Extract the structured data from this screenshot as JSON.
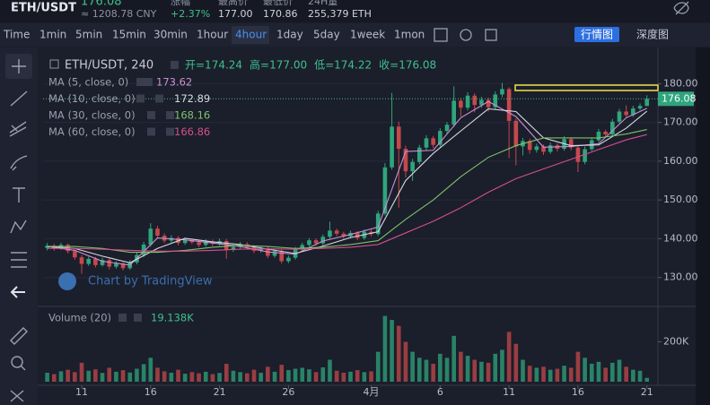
{
  "header": {
    "pair": "ETH/USDT",
    "price": "176.08",
    "cny": "≈ 1208.78 CNY",
    "stats": [
      {
        "label": "涨幅",
        "value": "+2.37%"
      },
      {
        "label": "最高价",
        "value": "177.00"
      },
      {
        "label": "最低价",
        "value": "170.86"
      },
      {
        "label": "24H量",
        "value": "255,379 ETH"
      }
    ]
  },
  "toolbar": {
    "intervals": [
      "Time",
      "1min",
      "5min",
      "15min",
      "30min",
      "1hour",
      "4hour",
      "1day",
      "5day",
      "1week",
      "1mon"
    ],
    "active": "4hour",
    "views": [
      "行情图",
      "深度图"
    ],
    "active_view": "行情图"
  },
  "chart_data": {
    "type": "candlestick",
    "title": "ETH/USDT, 240",
    "ohlc_legend": [
      "开=174.24",
      "高=177.00",
      "低=174.22",
      "收=176.08"
    ],
    "up_color": "#2fa57c",
    "down_color": "#c4494b",
    "grid": true,
    "watermark": "Chart by TradingView",
    "ylim": [
      123,
      187.7
    ],
    "yticks": [
      {
        "value": 130,
        "label": "130.00"
      },
      {
        "value": 140,
        "label": "140.00"
      },
      {
        "value": 150,
        "label": "150.00"
      },
      {
        "value": 160,
        "label": "160.00"
      },
      {
        "value": 170,
        "label": "170.00"
      },
      {
        "value": 180,
        "label": "180.00"
      }
    ],
    "xlim": [
      -0.6,
      88.6
    ],
    "xticks": [
      {
        "value": 5,
        "label": "11"
      },
      {
        "value": 15,
        "label": "16"
      },
      {
        "value": 25,
        "label": "21"
      },
      {
        "value": 35,
        "label": "26"
      },
      {
        "value": 47,
        "label": "4月"
      },
      {
        "value": 57,
        "label": "6"
      },
      {
        "value": 67,
        "label": "11"
      },
      {
        "value": 77,
        "label": "16"
      },
      {
        "value": 87,
        "label": "21"
      }
    ],
    "candles": [
      [
        137.6,
        138.9,
        137.0,
        138.2
      ],
      [
        138.2,
        138.7,
        136.9,
        137.5
      ],
      [
        137.5,
        139.0,
        137.1,
        138.4
      ],
      [
        138.4,
        138.8,
        136.2,
        136.8
      ],
      [
        136.8,
        137.3,
        134.6,
        135.2
      ],
      [
        135.2,
        135.8,
        131.0,
        133.5
      ],
      [
        133.5,
        135.4,
        133.0,
        134.8
      ],
      [
        134.8,
        135.3,
        132.6,
        133.2
      ],
      [
        133.2,
        135.1,
        132.8,
        134.5
      ],
      [
        134.5,
        134.9,
        132.1,
        132.8
      ],
      [
        132.8,
        134.2,
        132.3,
        133.6
      ],
      [
        133.6,
        134.0,
        131.8,
        132.4
      ],
      [
        132.4,
        134.5,
        132.0,
        133.9
      ],
      [
        133.9,
        136.4,
        133.4,
        135.8
      ],
      [
        135.8,
        139.2,
        135.3,
        138.5
      ],
      [
        138.5,
        144.0,
        138.0,
        142.6
      ],
      [
        142.6,
        143.3,
        140.2,
        140.8
      ],
      [
        140.8,
        141.4,
        138.9,
        139.5
      ],
      [
        139.5,
        140.9,
        139.0,
        140.2
      ],
      [
        140.2,
        140.7,
        138.3,
        138.9
      ],
      [
        138.9,
        140.3,
        138.4,
        139.6
      ],
      [
        139.6,
        140.1,
        138.6,
        139.1
      ],
      [
        139.1,
        139.6,
        137.8,
        138.4
      ],
      [
        138.4,
        139.9,
        137.9,
        139.3
      ],
      [
        139.3,
        139.8,
        138.1,
        138.7
      ],
      [
        138.7,
        140.0,
        138.2,
        139.4
      ],
      [
        139.4,
        139.9,
        134.8,
        137.2
      ],
      [
        137.2,
        138.5,
        136.6,
        137.9
      ],
      [
        137.9,
        139.2,
        137.4,
        138.6
      ],
      [
        138.6,
        139.1,
        137.2,
        137.8
      ],
      [
        137.8,
        138.3,
        136.3,
        136.9
      ],
      [
        136.9,
        138.0,
        136.4,
        137.4
      ],
      [
        137.4,
        137.9,
        135.0,
        135.6
      ],
      [
        135.6,
        137.4,
        135.1,
        136.8
      ],
      [
        136.8,
        137.3,
        133.6,
        134.2
      ],
      [
        134.2,
        135.7,
        133.7,
        135.1
      ],
      [
        135.1,
        137.9,
        134.6,
        137.3
      ],
      [
        137.3,
        139.0,
        136.8,
        138.4
      ],
      [
        138.4,
        140.2,
        137.9,
        139.6
      ],
      [
        139.6,
        140.1,
        138.2,
        138.8
      ],
      [
        138.8,
        141.1,
        138.3,
        140.5
      ],
      [
        140.5,
        144.4,
        140.0,
        142.1
      ],
      [
        142.1,
        142.6,
        140.7,
        141.3
      ],
      [
        141.3,
        141.8,
        140.0,
        140.6
      ],
      [
        140.6,
        142.1,
        140.1,
        141.5
      ],
      [
        141.5,
        142.0,
        139.6,
        140.2
      ],
      [
        140.2,
        142.4,
        139.7,
        141.8
      ],
      [
        141.8,
        142.3,
        140.6,
        141.2
      ],
      [
        141.2,
        147.2,
        140.7,
        146.5
      ],
      [
        146.5,
        159.5,
        146.0,
        158.4
      ],
      [
        158.4,
        177.6,
        157.8,
        168.9
      ],
      [
        168.9,
        170.2,
        148.0,
        163.2
      ],
      [
        163.2,
        164.0,
        155.8,
        157.4
      ],
      [
        157.4,
        160.6,
        154.9,
        159.8
      ],
      [
        159.8,
        164.2,
        159.2,
        163.5
      ],
      [
        163.5,
        166.7,
        162.8,
        165.9
      ],
      [
        165.9,
        166.5,
        163.4,
        164.2
      ],
      [
        164.2,
        168.5,
        163.6,
        167.8
      ],
      [
        167.8,
        170.1,
        166.9,
        169.4
      ],
      [
        169.4,
        179.3,
        168.8,
        175.6
      ],
      [
        175.6,
        176.3,
        171.5,
        173.8
      ],
      [
        173.8,
        177.8,
        173.1,
        176.9
      ],
      [
        176.9,
        177.5,
        172.6,
        174.5
      ],
      [
        174.5,
        176.6,
        173.8,
        175.8
      ],
      [
        175.8,
        176.4,
        172.8,
        173.9
      ],
      [
        173.9,
        178.0,
        173.3,
        177.2
      ],
      [
        177.2,
        180.2,
        176.5,
        178.6
      ],
      [
        178.6,
        179.1,
        160.8,
        170.4
      ],
      [
        170.4,
        171.0,
        158.9,
        163.8
      ],
      [
        163.8,
        166.0,
        161.5,
        165.2
      ],
      [
        165.2,
        165.8,
        161.9,
        162.9
      ],
      [
        162.9,
        164.5,
        162.2,
        163.8
      ],
      [
        163.8,
        164.3,
        161.6,
        162.4
      ],
      [
        162.4,
        164.8,
        161.9,
        164.1
      ],
      [
        164.1,
        164.6,
        162.5,
        163.2
      ],
      [
        163.2,
        166.4,
        162.7,
        165.7
      ],
      [
        165.7,
        166.2,
        162.8,
        163.5
      ],
      [
        163.5,
        164.0,
        157.2,
        159.8
      ],
      [
        159.8,
        163.8,
        159.2,
        163.1
      ],
      [
        163.1,
        166.1,
        162.6,
        165.4
      ],
      [
        165.4,
        168.3,
        164.9,
        167.6
      ],
      [
        167.6,
        168.1,
        166.2,
        166.9
      ],
      [
        166.9,
        170.9,
        166.4,
        170.2
      ],
      [
        170.2,
        173.5,
        169.7,
        172.8
      ],
      [
        172.8,
        174.4,
        171.2,
        171.9
      ],
      [
        171.9,
        174.3,
        171.4,
        173.6
      ],
      [
        173.6,
        174.9,
        173.1,
        174.24
      ],
      [
        174.24,
        177.0,
        174.22,
        176.08
      ]
    ],
    "ma_x": [
      0,
      4,
      8,
      12,
      16,
      20,
      24,
      28,
      32,
      36,
      40,
      44,
      48,
      52,
      56,
      60,
      64,
      68,
      72,
      76,
      80,
      84,
      87
    ],
    "series": [
      {
        "name": "MA (5, close, 0)",
        "color": "#c990d6",
        "values": [
          138,
          137,
          134.2,
          133.2,
          140.2,
          139.7,
          138.9,
          138,
          136.6,
          136,
          139.4,
          141.1,
          143,
          162.5,
          162.8,
          171.2,
          175.4,
          171.5,
          163.6,
          163.8,
          164.5,
          171.2,
          173.62
        ]
      },
      {
        "name": "MA (10, close, 0)",
        "color": "#d8d8e0",
        "values": [
          138,
          137.5,
          135.5,
          133.8,
          137.5,
          140.1,
          139.2,
          138.5,
          137.3,
          136.2,
          138.1,
          140.3,
          141.8,
          155,
          162,
          167.8,
          173.5,
          172.8,
          166,
          164,
          164.2,
          168.5,
          172.89
        ]
      },
      {
        "name": "MA (30, close, 0)",
        "color": "#7cc36a",
        "values": [
          138,
          138,
          137.5,
          136.5,
          136.5,
          137,
          137.8,
          138.3,
          138,
          137.5,
          137.8,
          138.5,
          139.5,
          145,
          150,
          156,
          161,
          164,
          166,
          166,
          166,
          167,
          168.16
        ]
      },
      {
        "name": "MA (60, close, 0)",
        "color": "#d4508c",
        "values": [
          137.5,
          137.5,
          137.3,
          137,
          136.8,
          136.8,
          137,
          137.3,
          137.4,
          137.3,
          137.5,
          137.8,
          138.5,
          141.5,
          144.5,
          148,
          152,
          155.5,
          158,
          160.5,
          163,
          165.5,
          166.86
        ]
      }
    ],
    "volume": {
      "title": "Volume (20)",
      "last_label": "19.138K",
      "ylim": [
        0,
        364000
      ],
      "yticks": [
        {
          "value": 200000,
          "label": "200K"
        }
      ],
      "values": [
        45000,
        38000,
        52000,
        60000,
        48000,
        95000,
        55000,
        62000,
        44000,
        70000,
        50000,
        58000,
        46000,
        65000,
        88000,
        120000,
        70000,
        52000,
        45000,
        60000,
        40000,
        48000,
        42000,
        50000,
        38000,
        44000,
        90000,
        55000,
        48000,
        42000,
        60000,
        45000,
        75000,
        50000,
        85000,
        58000,
        65000,
        70000,
        62000,
        48000,
        72000,
        110000,
        55000,
        45000,
        50000,
        58000,
        48000,
        52000,
        150000,
        330000,
        310000,
        280000,
        200000,
        150000,
        120000,
        110000,
        90000,
        140000,
        120000,
        230000,
        150000,
        130000,
        110000,
        100000,
        95000,
        140000,
        160000,
        250000,
        190000,
        110000,
        80000,
        70000,
        75000,
        60000,
        65000,
        80000,
        70000,
        150000,
        120000,
        90000,
        100000,
        70000,
        95000,
        110000,
        75000,
        60000,
        55000,
        19138
      ]
    }
  }
}
